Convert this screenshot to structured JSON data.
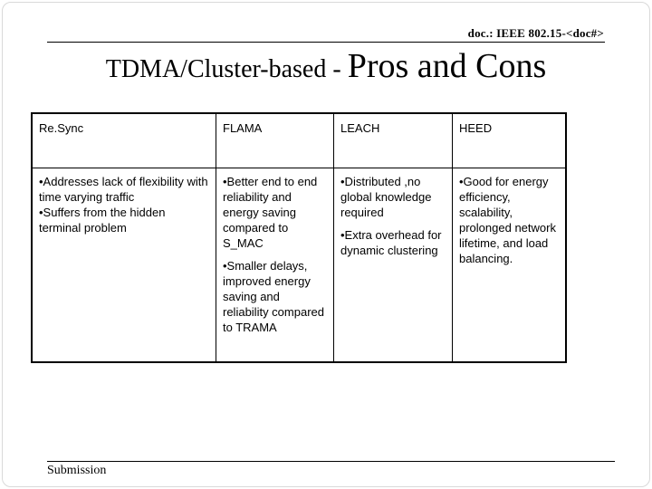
{
  "page": {
    "doc_label": "doc.: IEEE 802.15-<doc#>",
    "footer_label": "Submission"
  },
  "title": {
    "prefix": "TDMA/Cluster-based - ",
    "emphasis": "Pros and Cons"
  },
  "colors": {
    "text": "#000000",
    "background": "#ffffff",
    "table_border": "#000000",
    "slide_frame": "#d9d9d9"
  },
  "table": {
    "columns": [
      {
        "header": "Re.Sync",
        "bullets": [
          "•Addresses lack of  flexibility with time varying traffic",
          "•Suffers from the hidden terminal problem"
        ]
      },
      {
        "header": "FLAMA",
        "bullets": [
          "•Better end to end reliability and energy saving compared to S_MAC",
          "•Smaller delays, improved energy saving and reliability compared to TRAMA"
        ]
      },
      {
        "header": "LEACH",
        "bullets": [
          "•Distributed ,no global knowledge required",
          "•Extra overhead for dynamic clustering"
        ]
      },
      {
        "header": "HEED",
        "bullets": [
          "•Good for energy efficiency, scalability, prolonged network lifetime, and load balancing."
        ]
      }
    ]
  }
}
